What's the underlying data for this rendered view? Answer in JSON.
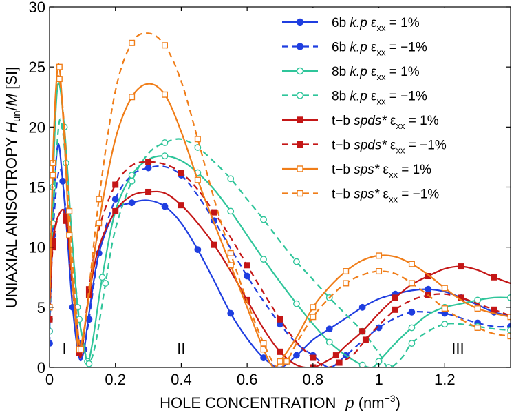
{
  "chart_data": {
    "type": "line",
    "title": "",
    "xlabel": {
      "prefix": "HOLE CONCENTRATION",
      "var": "p",
      "unit_open": " (nm",
      "unit_exp": "−3",
      "unit_close": ")"
    },
    "ylabel": {
      "prefix": "UNIAXIAL ANISOTROPY ",
      "var1": "H",
      "sub": "un",
      "slash": "/",
      "var2": "M",
      "unit": " [SI]"
    },
    "xlim": [
      0,
      1.4
    ],
    "ylim": [
      0,
      30
    ],
    "xticks": [
      0,
      0.2,
      0.4,
      0.6,
      0.8,
      1.0,
      1.2
    ],
    "xtick_labels": [
      "0",
      "0.2",
      "0.4",
      "0.6",
      "0.8",
      "1",
      "1.2"
    ],
    "yticks": [
      0,
      5,
      10,
      15,
      20,
      25,
      30
    ],
    "ytick_labels": [
      "0",
      "5",
      "10",
      "15",
      "20",
      "25",
      "30"
    ],
    "region_labels": [
      {
        "text": "I",
        "x": 0.045,
        "y": 1.6
      },
      {
        "text": "II",
        "x": 0.4,
        "y": 1.6
      },
      {
        "text": "III",
        "x": 1.24,
        "y": 1.6
      }
    ],
    "legend_position": "top-right",
    "series": [
      {
        "name": "6b k.p εxx = 1%",
        "model": "6b",
        "method": "k.p",
        "strain": " = 1%",
        "color": "#1f3ee0",
        "dash": false,
        "marker": "circle",
        "fill": true,
        "x": [
          0,
          0.01,
          0.025,
          0.04,
          0.055,
          0.07,
          0.09,
          0.105,
          0.12,
          0.15,
          0.2,
          0.25,
          0.3,
          0.35,
          0.4,
          0.45,
          0.5,
          0.55,
          0.6,
          0.65,
          0.7,
          0.75,
          0.8,
          0.85,
          0.9,
          0.95,
          1.0,
          1.05,
          1.1,
          1.15,
          1.2,
          1.25,
          1.3,
          1.35,
          1.4
        ],
        "y": [
          3,
          12,
          18.5,
          15.5,
          10.5,
          5,
          0.8,
          1.5,
          4.5,
          9.5,
          13,
          13.7,
          13.9,
          13.4,
          12,
          9.8,
          7.2,
          4.5,
          2.4,
          0.8,
          0,
          1,
          2.3,
          3.2,
          4.1,
          5,
          5.7,
          6.1,
          6.4,
          6.5,
          6.3,
          5.8,
          5.2,
          4.6,
          4.3
        ]
      },
      {
        "name": "6b k.p εxx = −1%",
        "model": "6b",
        "method": "k.p",
        "strain": " = −1%",
        "color": "#1f3ee0",
        "dash": true,
        "marker": "circle",
        "fill": true,
        "x": [
          0,
          0.01,
          0.03,
          0.05,
          0.07,
          0.09,
          0.1,
          0.12,
          0.15,
          0.2,
          0.25,
          0.3,
          0.35,
          0.4,
          0.45,
          0.5,
          0.55,
          0.6,
          0.65,
          0.7,
          0.75,
          0.8,
          0.85,
          0.9,
          0.95,
          1.0,
          1.05,
          1.1,
          1.15,
          1.2,
          1.25,
          1.3,
          1.35,
          1.4
        ],
        "y": [
          2,
          11,
          16.5,
          13,
          7,
          2,
          1,
          4,
          9.5,
          14,
          16,
          16.6,
          16.7,
          16,
          14.3,
          12.2,
          9.9,
          7.6,
          5.5,
          3.6,
          2,
          1,
          0,
          1,
          2.2,
          3.3,
          4.1,
          4.6,
          4.6,
          4.5,
          4.1,
          3.7,
          3.4,
          3.4
        ]
      },
      {
        "name": "8b k.p εxx = 1%",
        "model": "8b",
        "method": "k.p",
        "strain": " = 1%",
        "color": "#2fc59a",
        "dash": false,
        "marker": "circle",
        "fill": false,
        "x": [
          0,
          0.01,
          0.025,
          0.045,
          0.065,
          0.085,
          0.1,
          0.115,
          0.13,
          0.16,
          0.2,
          0.25,
          0.3,
          0.35,
          0.4,
          0.45,
          0.5,
          0.55,
          0.6,
          0.65,
          0.7,
          0.75,
          0.8,
          0.85,
          0.9,
          0.95,
          0.98,
          1.0,
          1.05,
          1.1,
          1.15,
          1.2,
          1.25,
          1.3,
          1.35,
          1.4
        ],
        "y": [
          4,
          15,
          23.5,
          20,
          12,
          5,
          2.5,
          0.5,
          2,
          7.5,
          13,
          16,
          17.3,
          17.6,
          17.2,
          16.2,
          14.8,
          13,
          11,
          9,
          7.1,
          5.3,
          3.6,
          2.1,
          1,
          0.2,
          0,
          0.5,
          2,
          3.3,
          4.4,
          5,
          5.3,
          5.6,
          5.8,
          5.8
        ]
      },
      {
        "name": "8b k.p εxx = −1%",
        "model": "8b",
        "method": "k.p",
        "strain": " = −1%",
        "color": "#2fc59a",
        "dash": true,
        "marker": "circle",
        "fill": false,
        "x": [
          0,
          0.01,
          0.03,
          0.05,
          0.07,
          0.09,
          0.11,
          0.12,
          0.14,
          0.17,
          0.2,
          0.25,
          0.3,
          0.35,
          0.4,
          0.45,
          0.5,
          0.55,
          0.6,
          0.65,
          0.7,
          0.75,
          0.8,
          0.85,
          0.9,
          0.95,
          1.0,
          1.03,
          1.07,
          1.1,
          1.15,
          1.2,
          1.25,
          1.3,
          1.35,
          1.4
        ],
        "y": [
          3,
          12,
          20.5,
          17,
          10,
          4,
          1,
          0.3,
          2,
          7,
          11.5,
          15.5,
          17.8,
          18.7,
          19,
          18.3,
          17.1,
          15.7,
          14,
          12.3,
          10.5,
          8.8,
          7.3,
          5.8,
          4.4,
          3,
          1.2,
          0,
          0.8,
          2,
          3,
          3.6,
          3.6,
          3.4,
          3.2,
          3.1
        ]
      },
      {
        "name": "t−b spds* εxx = 1%",
        "model": "t−b",
        "method": "spds*",
        "strain": " = 1%",
        "color": "#c41616",
        "dash": false,
        "marker": "square",
        "fill": true,
        "x": [
          0,
          0.01,
          0.03,
          0.05,
          0.07,
          0.09,
          0.1,
          0.12,
          0.15,
          0.2,
          0.25,
          0.3,
          0.35,
          0.4,
          0.45,
          0.5,
          0.55,
          0.6,
          0.65,
          0.7,
          0.75,
          0.8,
          0.84,
          0.87,
          0.9,
          0.95,
          1.0,
          1.05,
          1.1,
          1.15,
          1.2,
          1.25,
          1.3,
          1.35,
          1.4
        ],
        "y": [
          5,
          10.5,
          12.8,
          12.5,
          7,
          1.2,
          1.8,
          6,
          10,
          13,
          14.3,
          14.6,
          14.5,
          13.5,
          12,
          10.2,
          8,
          5.6,
          3.2,
          1.3,
          0.2,
          0,
          0.5,
          1,
          1.8,
          3,
          4.5,
          5.8,
          6.9,
          7.6,
          8.2,
          8.4,
          8.1,
          7.5,
          7
        ]
      },
      {
        "name": "t−b spds* εxx = −1%",
        "model": "t−b",
        "method": "spds*",
        "strain": " = −1%",
        "color": "#c41616",
        "dash": true,
        "marker": "square",
        "fill": true,
        "x": [
          0,
          0.01,
          0.03,
          0.05,
          0.07,
          0.09,
          0.1,
          0.12,
          0.15,
          0.2,
          0.25,
          0.3,
          0.35,
          0.4,
          0.45,
          0.5,
          0.55,
          0.6,
          0.65,
          0.7,
          0.75,
          0.8,
          0.84,
          0.88,
          0.92,
          0.96,
          1.0,
          1.05,
          1.1,
          1.15,
          1.2,
          1.25,
          1.3,
          1.35,
          1.4
        ],
        "y": [
          4,
          10,
          12.8,
          12.2,
          6.5,
          1.5,
          1.8,
          6.5,
          11.5,
          15.2,
          16.8,
          17.1,
          16.9,
          16.2,
          14.8,
          12.9,
          10.8,
          8.5,
          6.2,
          4,
          2.1,
          0.8,
          0,
          0.4,
          1,
          2.3,
          3.5,
          4.8,
          5.6,
          6,
          6.1,
          5.8,
          5.3,
          4.8,
          4.3
        ]
      },
      {
        "name": "t−b sps* εxx = 1%",
        "model": "t−b",
        "method": "sps*",
        "strain": " = 1%",
        "color": "#f07d18",
        "dash": false,
        "marker": "square",
        "fill": false,
        "x": [
          0,
          0.01,
          0.02,
          0.03,
          0.045,
          0.06,
          0.08,
          0.09,
          0.11,
          0.15,
          0.2,
          0.25,
          0.3,
          0.35,
          0.4,
          0.45,
          0.5,
          0.55,
          0.6,
          0.65,
          0.68,
          0.7,
          0.75,
          0.8,
          0.85,
          0.9,
          0.95,
          1.0,
          1.05,
          1.1,
          1.15,
          1.2,
          1.25,
          1.3,
          1.35,
          1.4
        ],
        "y": [
          5,
          17,
          23.5,
          25,
          19,
          11,
          3.5,
          1.5,
          4,
          12,
          19,
          22.5,
          23.6,
          22.7,
          19.6,
          15.6,
          12,
          8.5,
          5,
          1.5,
          0,
          0.5,
          2.5,
          5,
          6.7,
          8,
          8.9,
          9.3,
          9.2,
          8.6,
          7.7,
          6.6,
          5.6,
          4.9,
          4.5,
          4.2
        ]
      },
      {
        "name": "t−b sps* εxx = −1%",
        "model": "t−b",
        "method": "sps*",
        "strain": " = −1%",
        "color": "#f07d18",
        "dash": true,
        "marker": "square",
        "fill": false,
        "x": [
          0,
          0.01,
          0.02,
          0.03,
          0.045,
          0.06,
          0.08,
          0.095,
          0.11,
          0.15,
          0.2,
          0.25,
          0.3,
          0.35,
          0.4,
          0.45,
          0.5,
          0.55,
          0.6,
          0.65,
          0.69,
          0.72,
          0.75,
          0.8,
          0.85,
          0.9,
          0.95,
          1.0,
          1.05,
          1.1,
          1.15,
          1.2,
          1.25,
          1.3,
          1.35,
          1.4
        ],
        "y": [
          5,
          16,
          23,
          24,
          20,
          13,
          5,
          1.5,
          4,
          14,
          23,
          27,
          27.8,
          26.8,
          23.8,
          19,
          14,
          9.5,
          5.5,
          2,
          0,
          0.5,
          2,
          4.2,
          5.8,
          7,
          7.7,
          8,
          7.8,
          7,
          6,
          4.9,
          4,
          3.3,
          2.8,
          2.6
        ]
      }
    ]
  }
}
